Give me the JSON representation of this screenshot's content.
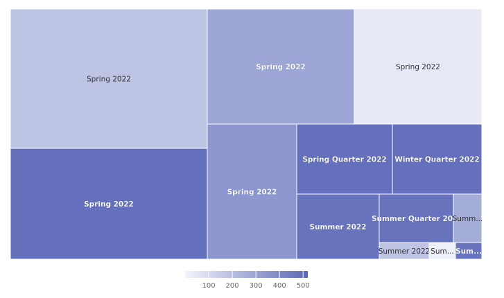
{
  "chart_data": {
    "type": "treemap",
    "tiles": [
      {
        "label": "Spring 2022",
        "value": 180
      },
      {
        "label": "Spring 2022",
        "value": 490
      },
      {
        "label": "Spring 2022",
        "value": 290
      },
      {
        "label": "Spring 2022",
        "value": 40
      },
      {
        "label": "Spring 2022",
        "value": 350
      },
      {
        "label": "Spring Quarter 2022",
        "value": 490
      },
      {
        "label": "Winter Quarter 2022",
        "value": 490
      },
      {
        "label": "Summer 2022",
        "value": 480
      },
      {
        "label": "Summer Quarter 20...",
        "value": 480
      },
      {
        "label": "Summ...",
        "value": 270
      },
      {
        "label": "Summer 2022",
        "value": 180
      },
      {
        "label": "Sum...",
        "value": 20
      },
      {
        "label": "Sum...",
        "value": 480
      }
    ],
    "color_scale": {
      "min": 0,
      "max": 520,
      "low_color": "#f3f5fb",
      "high_color": "#5b68b8",
      "ticks": [
        100,
        200,
        300,
        400,
        500
      ],
      "legend_position": "bottom"
    }
  }
}
